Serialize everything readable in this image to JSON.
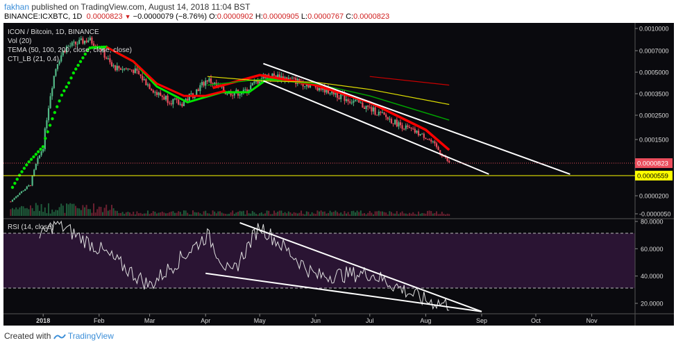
{
  "header": {
    "user": "fakhan",
    "published": "published on TradingView.com, August 14, 2018 11:04 BST",
    "symbol": "BINANCE:ICXBTC, 1D",
    "last": "0.0000823",
    "arrow_icon": "triangle-down-icon",
    "change": "−0.0000079 (−8.76%)",
    "o_label": "O:",
    "o_value": "0.0000902",
    "h_label": "H:",
    "h_value": "0.0000905",
    "l_label": "L:",
    "l_value": "0.0000767",
    "c_label": "C:",
    "c_value": "0.0000823"
  },
  "legend": {
    "title": "ICON / Bitcoin, 1D, BINANCE",
    "vol": "Vol (20)",
    "tema": "TEMA (50, 100, 200, close, close, close)",
    "cti": "CTI_LB (21, 0.4)",
    "rsi": "RSI (14, close)"
  },
  "footer": {
    "created": "Created with",
    "brand": "TradingView",
    "logo_icon": "tradingview-logo-icon"
  },
  "colors": {
    "background": "#0a0a0e",
    "up": "#53b987",
    "down": "#eb4d5c",
    "cti": "#00e600",
    "tema1": "#ff0000",
    "tema2": "#00a000",
    "tema3": "#e0e000",
    "rsi": "#e0e0e0",
    "rsi_band": "#2a1433",
    "support": "#ffff00"
  },
  "chart_data": [
    {
      "type": "candlestick",
      "title": "ICON / Bitcoin, 1D, BINANCE",
      "x_range": [
        "2017-12-10",
        "2018-11-25"
      ],
      "x_ticks": [
        "2018",
        "Feb",
        "Mar",
        "Apr",
        "May",
        "Jun",
        "Jul",
        "Aug",
        "Sep",
        "Oct",
        "Nov"
      ],
      "y_ticks": [
        "0.0010000",
        "0.0007000",
        "0.0005000",
        "0.0003500",
        "0.0002500",
        "0.0001500",
        "0.0000823",
        "0.0000559",
        "0.0000200",
        "-0.0000050"
      ],
      "last_price_label": "0.0000823",
      "support_label": "0.0000559",
      "series": [
        {
          "name": "TEMA (50, 100, 200, close, close, close)",
          "points": [
            [
              "2018-04-05",
              0.00039
            ],
            [
              "2018-05-01",
              0.00048
            ],
            [
              "2018-06-01",
              0.00041
            ],
            [
              "2018-07-01",
              0.00031
            ],
            [
              "2018-08-01",
              0.00019
            ],
            [
              "2018-08-14",
              0.00012
            ]
          ]
        },
        {
          "name": "CTI_LB (21, 0.4)",
          "points": [
            [
              "2017-12-15",
              3.5e-05
            ],
            [
              "2018-01-01",
              0.00013
            ],
            [
              "2018-01-15",
              0.00042
            ],
            [
              "2018-01-27",
              0.00074
            ],
            [
              "2018-02-05",
              0.00075
            ]
          ]
        }
      ],
      "trendlines": [
        {
          "start": [
            "2018-05-03",
            0.00058
          ],
          "end": [
            "2018-10-20",
            5.9e-05
          ]
        },
        {
          "start": [
            "2018-05-03",
            0.00044
          ],
          "end": [
            "2018-09-05",
            5.9e-05
          ]
        }
      ]
    },
    {
      "type": "line",
      "title": "RSI (14, close)",
      "y_ticks": [
        "80.0000",
        "60.0000",
        "40.0000",
        "20.0000"
      ],
      "levels": [
        70,
        30
      ],
      "series": [
        {
          "name": "RSI (14, close)",
          "points": [
            [
              "2017-12-30",
              68
            ],
            [
              "2018-01-08",
              79
            ],
            [
              "2018-02-01",
              60
            ],
            [
              "2018-03-01",
              33
            ],
            [
              "2018-04-02",
              70
            ],
            [
              "2018-04-15",
              40
            ],
            [
              "2018-05-01",
              77
            ],
            [
              "2018-06-01",
              40
            ],
            [
              "2018-07-01",
              42
            ],
            [
              "2018-08-01",
              22
            ],
            [
              "2018-08-14",
              19
            ]
          ]
        }
      ],
      "trendlines": [
        {
          "start": [
            "2018-04-20",
            79
          ],
          "end": [
            "2018-09-01",
            14
          ]
        },
        {
          "start": [
            "2018-04-01",
            42
          ],
          "end": [
            "2018-09-01",
            14
          ]
        }
      ]
    }
  ]
}
